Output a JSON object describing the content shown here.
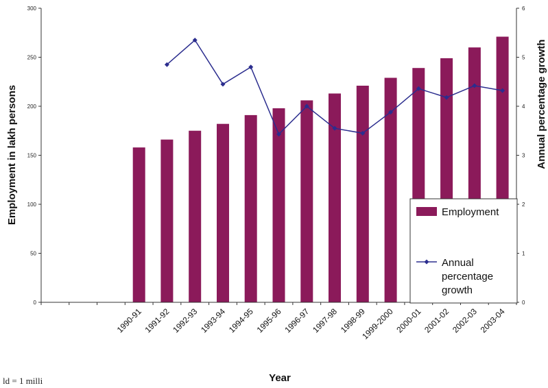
{
  "chart_data": {
    "type": "bar",
    "categories": [
      "",
      "",
      "",
      "1990-91",
      "1991-92",
      "1992-93",
      "1993-94",
      "1994-95",
      "1995-96",
      "1996-97",
      "1997-98",
      "1998-99",
      "1999-2000",
      "2000-01",
      "2001-02",
      "2002-03",
      "2003-04"
    ],
    "series": [
      {
        "name": "Employment",
        "type": "bar",
        "axis": "left",
        "color": "#8b1a5a",
        "values": [
          null,
          null,
          null,
          158,
          166,
          175,
          182,
          191,
          198,
          206,
          213,
          221,
          229,
          239,
          249,
          260,
          271
        ]
      },
      {
        "name": "Annual percentage growth",
        "type": "line",
        "axis": "right",
        "color": "#2b2d8e",
        "values": [
          null,
          null,
          null,
          null,
          4.85,
          5.35,
          4.45,
          4.8,
          3.43,
          4.0,
          3.55,
          3.45,
          3.88,
          4.36,
          4.18,
          4.42,
          4.32
        ]
      }
    ],
    "xlabel": "Year",
    "ylabel": "Employment in lakh persons",
    "y2label": "Annual percentage growth",
    "ylim": [
      0,
      300
    ],
    "y2lim": [
      0,
      6
    ],
    "yticks": [
      0,
      50,
      100,
      150,
      200,
      250,
      300
    ],
    "y2ticks": [
      0,
      1,
      2,
      3,
      4,
      5,
      6
    ],
    "grid": false,
    "legend_position": "bottom-right"
  },
  "footnote": "ld = 1 milli"
}
